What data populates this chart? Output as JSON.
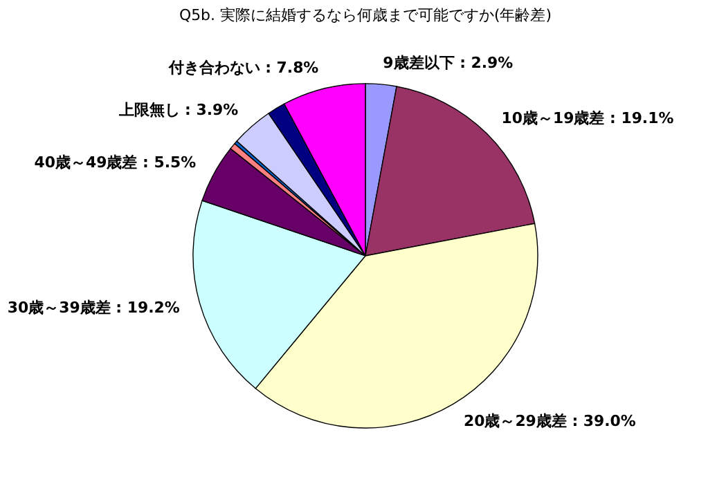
{
  "chart_data": {
    "type": "pie",
    "title": "Q5b. 実際に結婚するなら何歳まで可能ですか(年齢差)",
    "categories": [
      "9歳差以下",
      "10歳～19歳差",
      "20歳～29歳差",
      "30歳～39歳差",
      "40歳～49歳差",
      null,
      null,
      "上限無し",
      null,
      "付き合わない"
    ],
    "values": [
      2.9,
      19.1,
      39.0,
      19.2,
      5.5,
      0.6,
      0.3,
      3.9,
      1.7,
      7.8
    ],
    "colors": [
      "#9999ff",
      "#993366",
      "#ffffcc",
      "#ccffff",
      "#660066",
      "#ff8080",
      "#0066cc",
      "#ccccff",
      "#000080",
      "#ff00ff"
    ],
    "value_labels": [
      "2.9%",
      "19.1%",
      "39.0%",
      "19.2%",
      "5.5%",
      null,
      null,
      "3.9%",
      null,
      "7.8%"
    ],
    "legend": false
  }
}
